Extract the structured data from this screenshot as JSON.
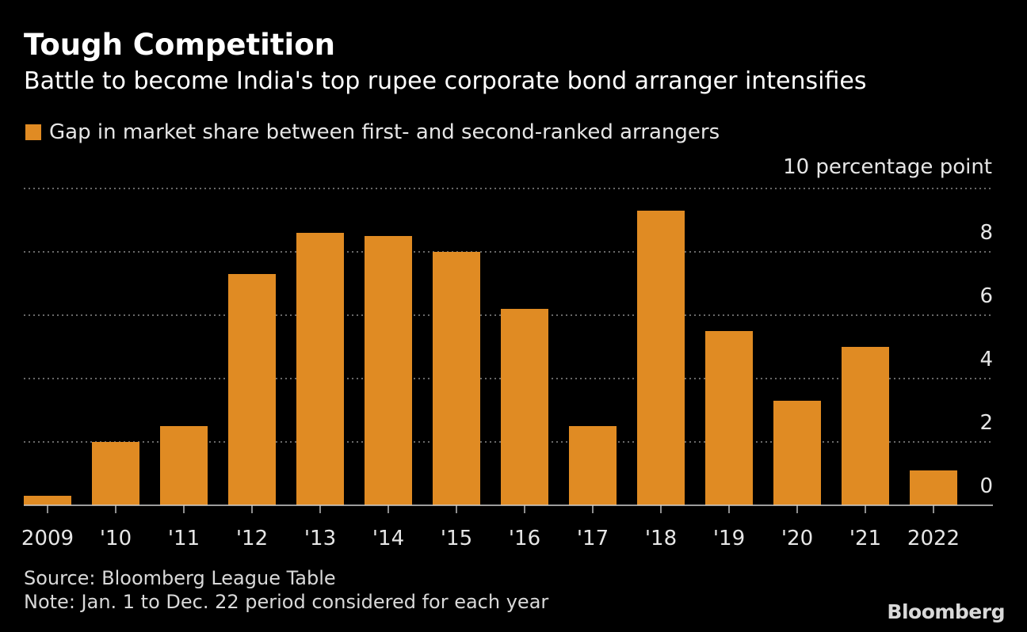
{
  "title": "Tough Competition",
  "subtitle": "Battle to become India's top rupee corporate bond arranger intensifies",
  "source": "Source: Bloomberg League Table",
  "note": "Note: Jan. 1 to Dec. 22 period considered for each year",
  "brand": "Bloomberg",
  "colors": {
    "bar": "#E08B23",
    "background": "#000000",
    "grid": "#8a8a8a",
    "text": "#ffffff"
  },
  "chart_data": {
    "type": "bar",
    "categories": [
      "2009",
      "'10",
      "'11",
      "'12",
      "'13",
      "'14",
      "'15",
      "'16",
      "'17",
      "'18",
      "'19",
      "'20",
      "'21",
      "2022"
    ],
    "series": [
      {
        "name": "Gap in market share between first- and second-ranked arrangers",
        "values": [
          0.3,
          2.0,
          2.5,
          7.3,
          8.6,
          8.5,
          8.0,
          6.2,
          2.5,
          9.3,
          5.5,
          3.3,
          5.0,
          1.1
        ]
      }
    ],
    "ylabel": "10 percentage point",
    "ylim": [
      0,
      10
    ],
    "yticks": [
      0,
      2,
      4,
      6,
      8
    ],
    "y_axis_side": "right",
    "grid": true,
    "legend_position": "top-left"
  }
}
